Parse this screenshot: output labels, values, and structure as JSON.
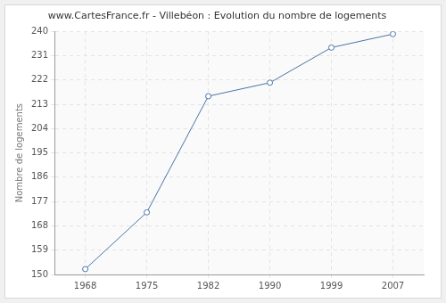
{
  "chart_data": {
    "type": "line",
    "title": "www.CartesFrance.fr - Villebéon : Evolution du nombre de logements",
    "y_label": "Nombre de logements",
    "categories": [
      "1968",
      "1975",
      "1982",
      "1990",
      "1999",
      "2007"
    ],
    "values": [
      152,
      173,
      216,
      221,
      234,
      239
    ],
    "color": "#4a74a8",
    "marker": "circle",
    "line_style": "solid",
    "ylim": [
      150,
      240
    ],
    "yticks": [
      150,
      159,
      168,
      177,
      186,
      195,
      204,
      213,
      222,
      231,
      240
    ],
    "grid": true
  }
}
